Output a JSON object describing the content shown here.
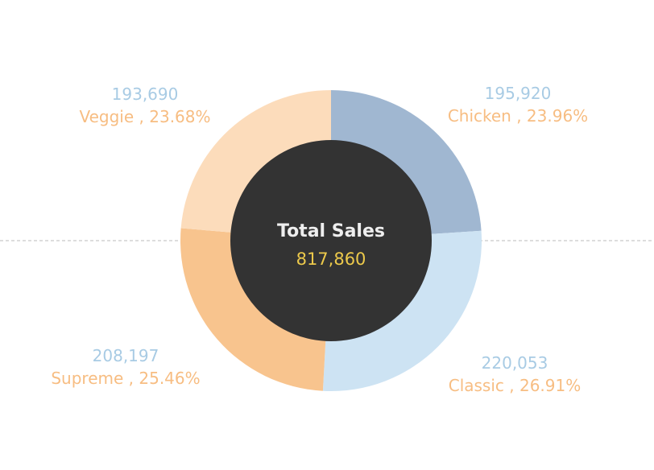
{
  "chart_data": {
    "type": "pie",
    "center_label": "Total Sales",
    "center_value": "817,860",
    "slices": [
      {
        "name": "Chicken",
        "value": 195920,
        "value_label": "195,920",
        "category_label": "Chicken , 23.96%",
        "color": "#a0b7d1"
      },
      {
        "name": "Classic",
        "value": 220053,
        "value_label": "220,053",
        "category_label": "Classic , 26.91%",
        "color": "#cde3f3"
      },
      {
        "name": "Supreme",
        "value": 208197,
        "value_label": "208,197",
        "category_label": "Supreme , 25.46%",
        "color": "#f8c48e"
      },
      {
        "name": "Veggie",
        "value": 193690,
        "value_label": "193,690",
        "category_label": "Veggie , 23.68%",
        "color": "#fcdcbb"
      }
    ],
    "colors": {
      "value_text": "#a8cbe4",
      "category_text": "#f7bd82",
      "hole": "#333333",
      "center_title": "#eeeeee",
      "center_value": "#ecc94b",
      "reference_line": "#bbbbbb"
    }
  }
}
